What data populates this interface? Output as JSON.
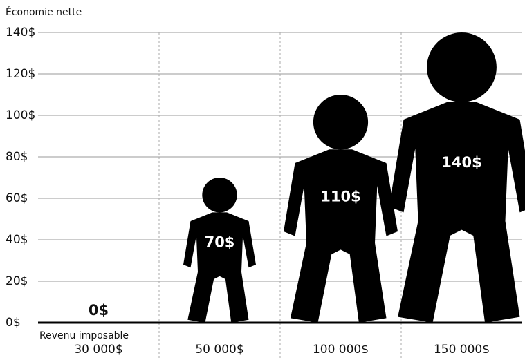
{
  "chart_data": {
    "type": "pictograph",
    "y_label": "Économie nette",
    "x_label": "Revenu imposable",
    "categories": [
      "30 000$",
      "50 000$",
      "100 000$",
      "150 000$"
    ],
    "values": [
      0,
      70,
      110,
      140
    ],
    "value_labels": [
      "0$",
      "70$",
      "110$",
      "140$"
    ],
    "color": "#000000",
    "ylim": [
      0,
      140
    ],
    "yticks": [
      {
        "value": 0,
        "label": "0$"
      },
      {
        "value": 20,
        "label": "20$"
      },
      {
        "value": 40,
        "label": "40$"
      },
      {
        "value": 60,
        "label": "60$"
      },
      {
        "value": 80,
        "label": "80$"
      },
      {
        "value": 100,
        "label": "100$"
      },
      {
        "value": 120,
        "label": "120$"
      },
      {
        "value": 140,
        "label": "140$"
      }
    ],
    "grid": true
  }
}
